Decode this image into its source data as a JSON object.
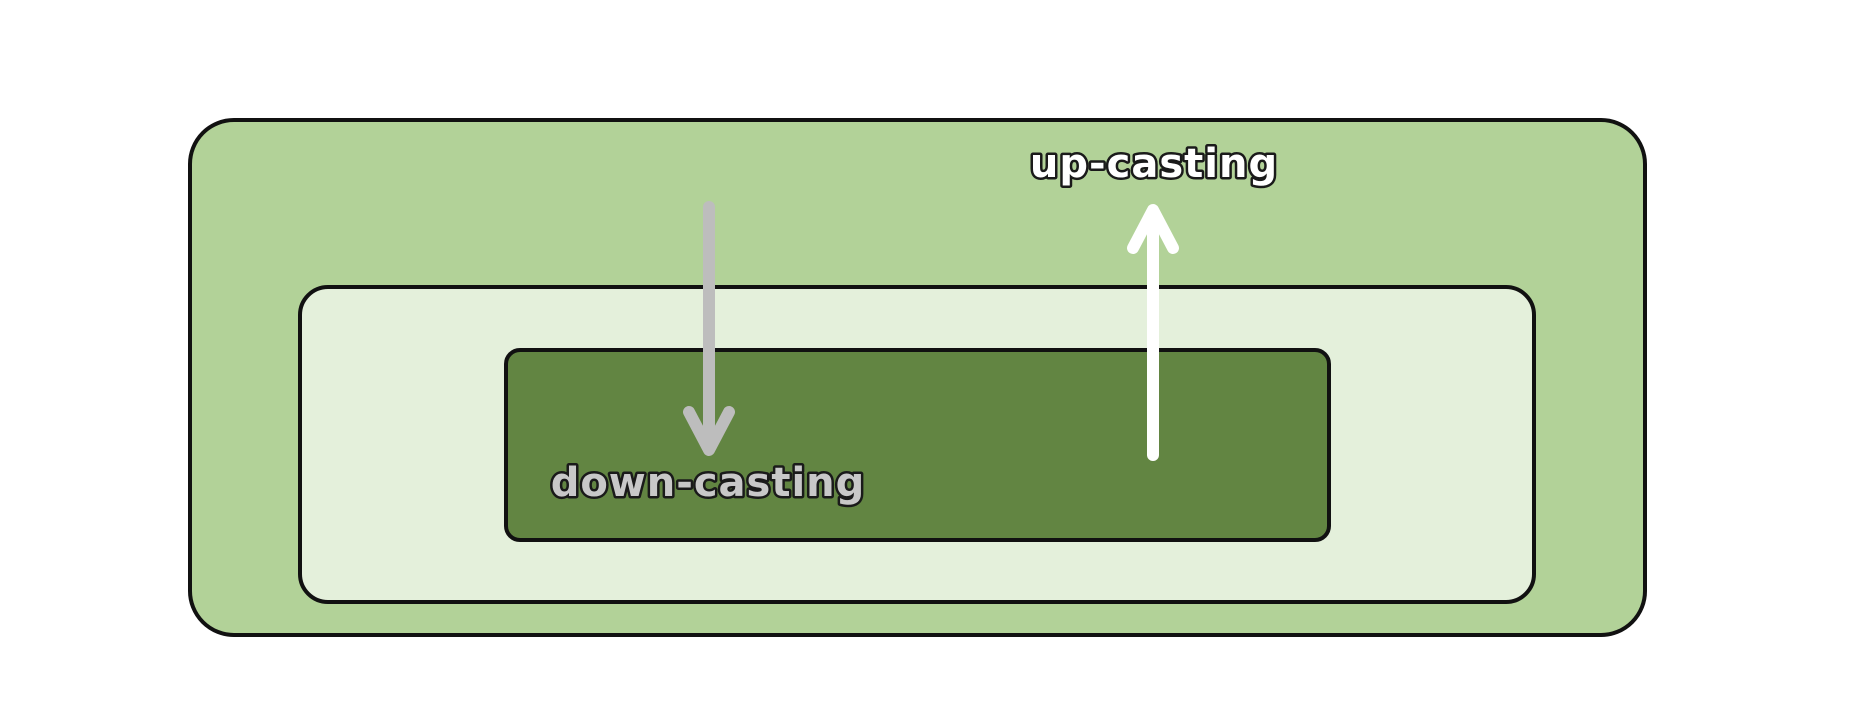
{
  "labels": {
    "up": "up-casting",
    "down": "down-casting"
  },
  "colors": {
    "outer_box": "#b2d298",
    "middle_box": "#e4f0db",
    "inner_box": "#628542",
    "border": "#111111",
    "up_arrow": "#ffffff",
    "down_arrow": "#bdbdbd",
    "up_label_fill": "#ffffff",
    "down_label_fill": "#c8c8c8"
  },
  "icons": {
    "up": "arrow-up-icon",
    "down": "arrow-down-icon"
  }
}
